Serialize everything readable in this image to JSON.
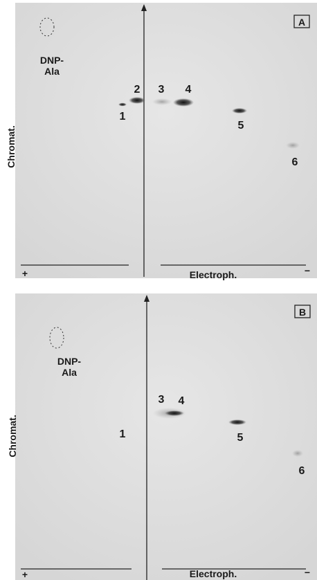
{
  "panels": [
    {
      "label": "A",
      "marker": [
        "DNP-",
        "Ala"
      ],
      "spots": [
        "1",
        "2",
        "3",
        "4",
        "5",
        "6"
      ],
      "y_axis": "Chromat.",
      "x_axis": "Electroph.",
      "anode": "+",
      "cathode": "−"
    },
    {
      "label": "B",
      "marker": [
        "DNP-",
        "Ala"
      ],
      "spots": [
        "3",
        "4",
        "1",
        "5",
        "6"
      ],
      "y_axis": "Chromat.",
      "x_axis": "Electroph.",
      "anode": "+",
      "cathode": "−"
    }
  ]
}
